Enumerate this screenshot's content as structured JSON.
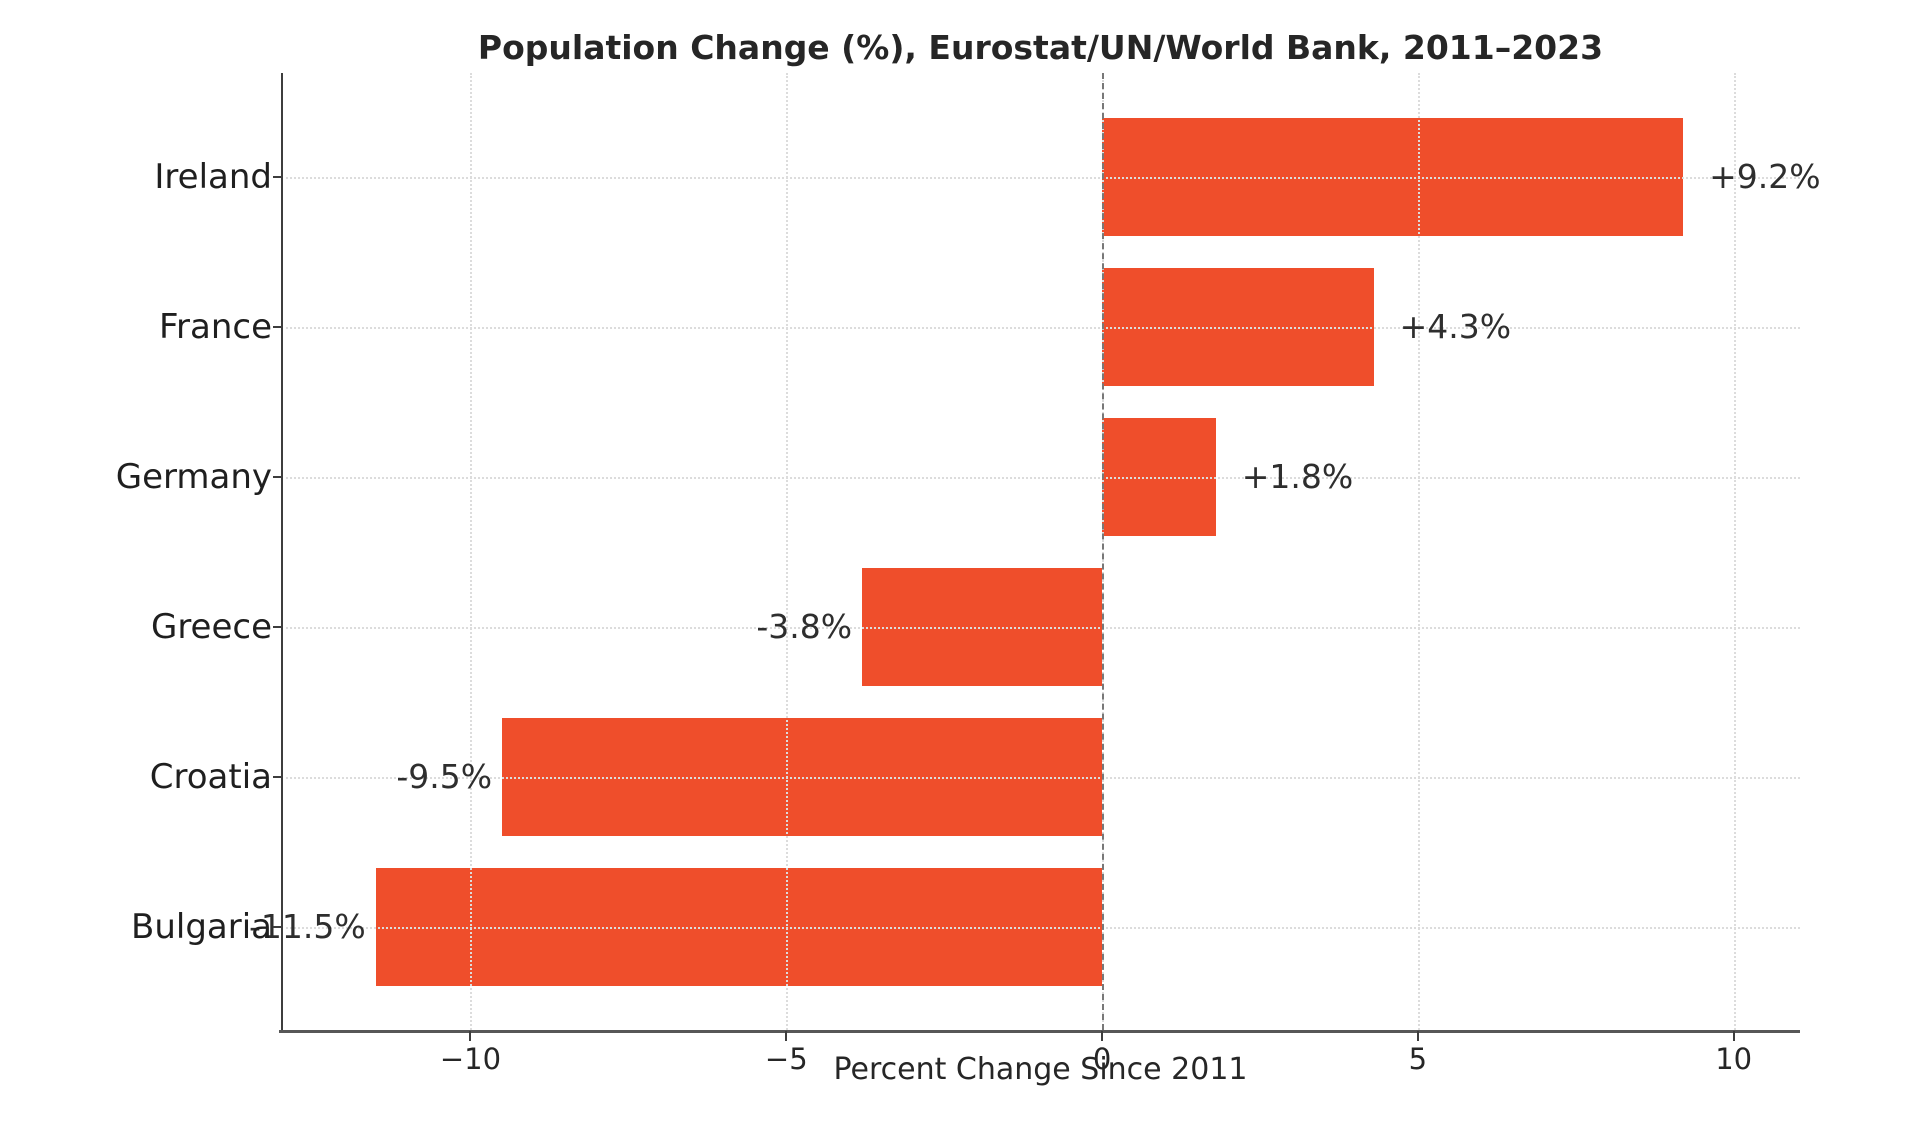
{
  "chart_data": {
    "type": "bar",
    "orientation": "horizontal",
    "title": "Population Change (%), Eurostat/UN/World Bank, 2011–2023",
    "xlabel": "Percent Change Since 2011",
    "ylabel": "",
    "categories": [
      "Ireland",
      "France",
      "Germany",
      "Greece",
      "Croatia",
      "Bulgaria"
    ],
    "values": [
      9.2,
      4.3,
      1.8,
      -3.8,
      -9.5,
      -11.5
    ],
    "bar_labels": [
      "+9.2%",
      "+4.3%",
      "+1.8%",
      "-3.8%",
      "-9.5%",
      "-11.5%"
    ],
    "xlim": [
      -13,
      11.05
    ],
    "xticks": [
      -10,
      -5,
      0,
      5,
      10
    ],
    "xtick_labels": [
      "−10",
      "−5",
      "0",
      "5",
      "10"
    ],
    "grid": true,
    "grid_style": "dotted",
    "zero_line": true,
    "legend": false,
    "bar_color": "#ef4e2b",
    "text_color": "#262626",
    "gridline_color": "#dcdcdc",
    "zero_line_color": "#787878",
    "background_color": "#ffffff"
  }
}
